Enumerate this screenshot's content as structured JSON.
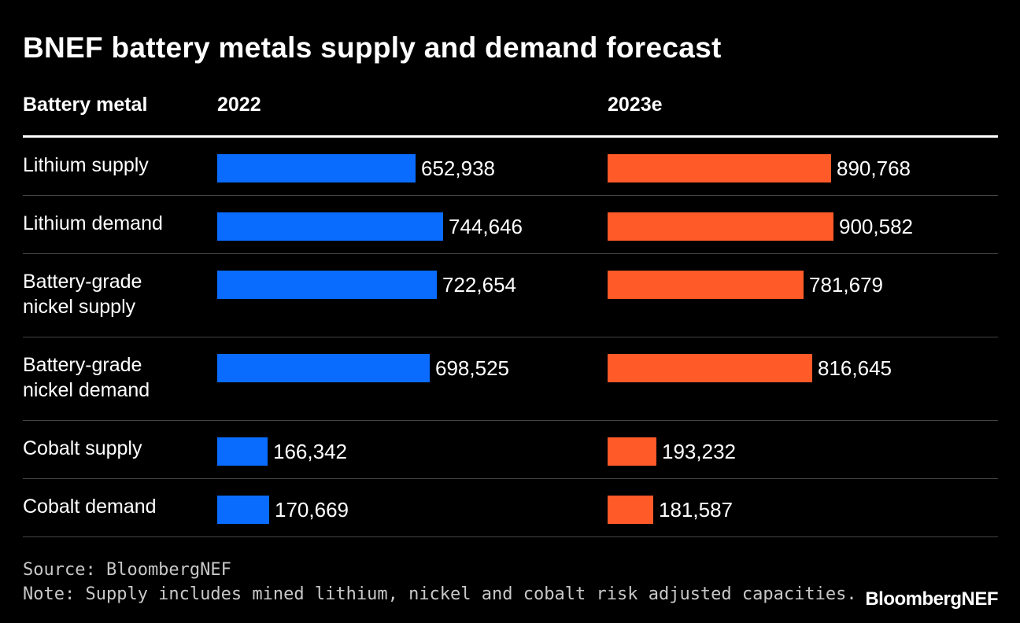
{
  "title": "BNEF battery metals supply and demand forecast",
  "headers": {
    "label_col": "Battery metal",
    "col_2022": "2022",
    "col_2023": "2023e"
  },
  "colors": {
    "y2022": "#0a6cff",
    "y2023": "#ff5a28"
  },
  "chart_data": {
    "type": "bar",
    "orientation": "horizontal",
    "categories": [
      "Lithium supply",
      "Lithium demand",
      "Battery-grade nickel supply",
      "Battery-grade nickel demand",
      "Cobalt supply",
      "Cobalt demand"
    ],
    "series": [
      {
        "name": "2022",
        "values": [
          652938,
          744646,
          722654,
          698525,
          166342,
          170669
        ]
      },
      {
        "name": "2023e",
        "values": [
          890768,
          900582,
          781679,
          816645,
          193232,
          181587
        ]
      }
    ],
    "value_labels": {
      "2022": [
        "652,938",
        "744,646",
        "722,654",
        "698,525",
        "166,342",
        "170,669"
      ],
      "2023e": [
        "890,768",
        "900,582",
        "781,679",
        "816,645",
        "193,232",
        "181,587"
      ]
    },
    "grid": false,
    "legend": "none"
  },
  "rows": [
    {
      "label": "Lithium supply"
    },
    {
      "label": "Lithium demand"
    },
    {
      "label": "Battery-grade\nnickel supply"
    },
    {
      "label": "Battery-grade\nnickel demand"
    },
    {
      "label": "Cobalt supply"
    },
    {
      "label": "Cobalt demand"
    }
  ],
  "source": "Source: BloombergNEF",
  "note": "Note: Supply includes mined lithium, nickel and cobalt risk adjusted capacities.",
  "logo": "BloombergNEF"
}
